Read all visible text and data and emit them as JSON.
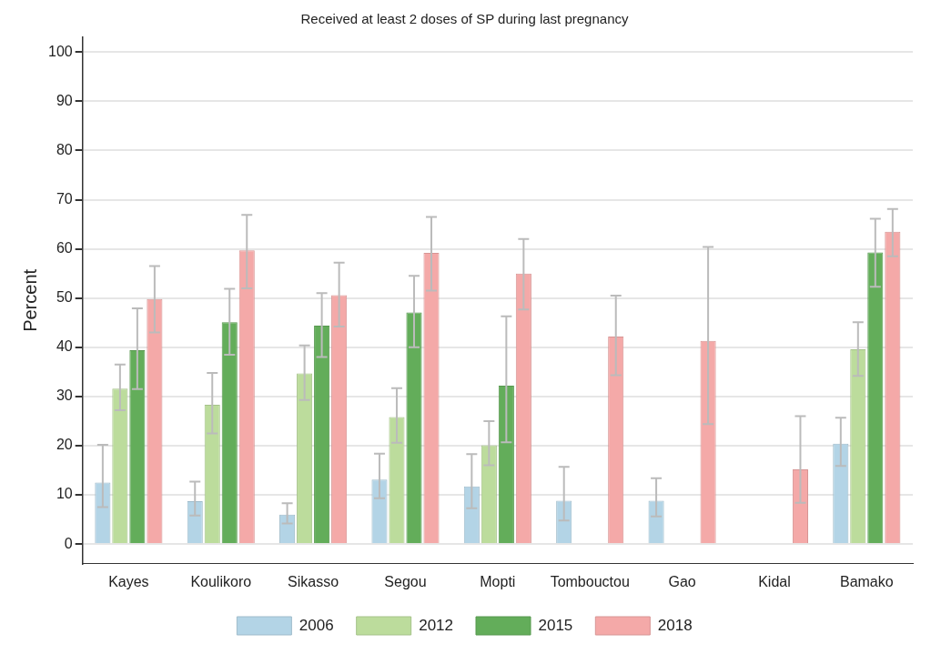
{
  "chart_data": {
    "type": "bar",
    "title": "Received at least 2 doses of SP during last pregnancy",
    "ylabel": "Percent",
    "categories": [
      "Kayes",
      "Koulikoro",
      "Sikasso",
      "Segou",
      "Mopti",
      "Tombouctou",
      "Gao",
      "Kidal",
      "Bamako"
    ],
    "series": [
      {
        "name": "2006",
        "color": "#b3d4e6",
        "values": [
          12.5,
          8.7,
          6.0,
          13.1,
          11.7,
          8.8,
          8.8,
          null,
          20.4
        ],
        "errors": [
          [
            7.5,
            20.2
          ],
          [
            5.8,
            12.7
          ],
          [
            4.2,
            8.3
          ],
          [
            9.3,
            18.4
          ],
          [
            7.3,
            18.3
          ],
          [
            4.8,
            15.7
          ],
          [
            5.6,
            13.4
          ],
          null,
          [
            15.9,
            25.7
          ]
        ]
      },
      {
        "name": "2012",
        "color": "#bcdc9c",
        "values": [
          31.6,
          28.3,
          34.7,
          25.8,
          20.1,
          null,
          null,
          null,
          39.6
        ],
        "errors": [
          [
            27.2,
            36.5
          ],
          [
            22.5,
            34.8
          ],
          [
            29.3,
            40.4
          ],
          [
            20.6,
            31.7
          ],
          [
            16.0,
            25.0
          ],
          null,
          null,
          null,
          [
            34.2,
            45.1
          ]
        ]
      },
      {
        "name": "2015",
        "color": "#63ad5a",
        "values": [
          39.4,
          45.1,
          44.4,
          47.1,
          32.2,
          null,
          null,
          null,
          59.3
        ],
        "errors": [
          [
            31.5,
            47.9
          ],
          [
            38.5,
            51.9
          ],
          [
            38.0,
            51.0
          ],
          [
            40.0,
            54.5
          ],
          [
            20.7,
            46.3
          ],
          null,
          null,
          null,
          [
            52.3,
            66.1
          ]
        ]
      },
      {
        "name": "2018",
        "color": "#f4a9a8",
        "values": [
          49.8,
          59.7,
          50.6,
          59.2,
          55.0,
          42.2,
          41.3,
          15.2,
          63.5
        ],
        "errors": [
          [
            43.0,
            56.5
          ],
          [
            52.0,
            66.9
          ],
          [
            44.2,
            57.2
          ],
          [
            51.5,
            66.5
          ],
          [
            47.7,
            62.0
          ],
          [
            34.3,
            50.5
          ],
          [
            24.4,
            60.4
          ],
          [
            8.4,
            26.0
          ],
          [
            58.5,
            68.1
          ]
        ]
      }
    ],
    "ylim": [
      -4,
      103
    ],
    "yticks": [
      0,
      10,
      20,
      30,
      40,
      50,
      60,
      70,
      80,
      90,
      100
    ],
    "grid": "y",
    "legend": "bottom"
  }
}
